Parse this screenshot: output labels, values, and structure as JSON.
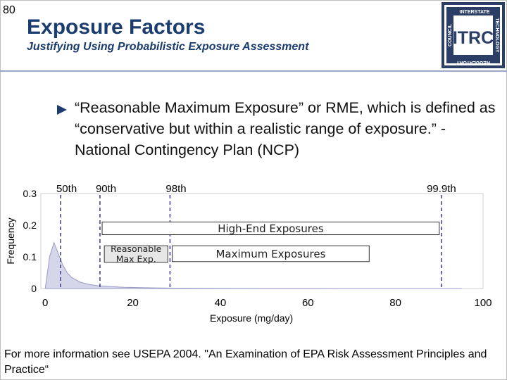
{
  "slide": {
    "number": "80",
    "title": "Exposure Factors",
    "subtitle": "Justifying Using Probabilistic Exposure Assessment",
    "bullet": "“Reasonable Maximum Exposure” or RME, which is defined as “conservative but within a realistic range of exposure.” - National Contingency Plan (NCP)",
    "footer": "For more information see USEPA 2004. \"An Examination of EPA Risk Assessment Principles and Practice“"
  },
  "logo": {
    "center": "ITRC",
    "top": "INTERSTATE",
    "right": "TECHNOLOGY",
    "bottom": "REGULATORY",
    "left": "COUNCIL"
  },
  "colors": {
    "title": "#1a3c6e",
    "bullet": "#1a3c6e",
    "density_fill": "#d6d6ea",
    "density_line": "#9a9ac8",
    "percentile_line": "#3a3a8a"
  },
  "chart_data": {
    "type": "area",
    "xlabel": "Exposure (mg/day)",
    "ylabel": "Frequency",
    "xlim": [
      -1,
      100
    ],
    "ylim": [
      0,
      0.3
    ],
    "x_ticks": [
      "0",
      "20",
      "40",
      "60",
      "80",
      "100"
    ],
    "x_tick_values": [
      0,
      20,
      40,
      60,
      80,
      100
    ],
    "y_ticks": [
      "0",
      "0.1",
      "0.2",
      "0.3"
    ],
    "y_tick_values": [
      0,
      0.1,
      0.2,
      0.3
    ],
    "density": {
      "x": [
        0,
        1,
        2,
        3,
        4,
        5,
        6,
        8,
        10,
        12,
        15,
        18,
        21,
        25,
        30,
        35,
        40,
        50,
        60,
        70,
        80,
        90,
        95
      ],
      "y": [
        0,
        0.1,
        0.145,
        0.11,
        0.075,
        0.05,
        0.035,
        0.02,
        0.013,
        0.009,
        0.006,
        0.004,
        0.003,
        0.002,
        0.0012,
        0.0008,
        0.0005,
        0.0003,
        0.0002,
        0.0001,
        8e-05,
        5e-05,
        4e-05
      ]
    },
    "percentiles": [
      {
        "label": "50th",
        "x": 3.5
      },
      {
        "label": "90th",
        "x": 12.5
      },
      {
        "label": "98th",
        "x": 28.5
      },
      {
        "label": "99.9th",
        "x": 90.5
      }
    ],
    "annotations": [
      {
        "label": "High-End Exposures",
        "x0": 13,
        "x1": 90,
        "y0": 0.17,
        "y1": 0.21,
        "shaded": false
      },
      {
        "label": "Reasonable Max Exp.",
        "x0": 13.5,
        "x1": 28,
        "y0": 0.083,
        "y1": 0.135,
        "shaded": true
      },
      {
        "label": "Maximum Exposures",
        "x0": 29,
        "x1": 74,
        "y0": 0.085,
        "y1": 0.135,
        "shaded": false
      }
    ]
  }
}
